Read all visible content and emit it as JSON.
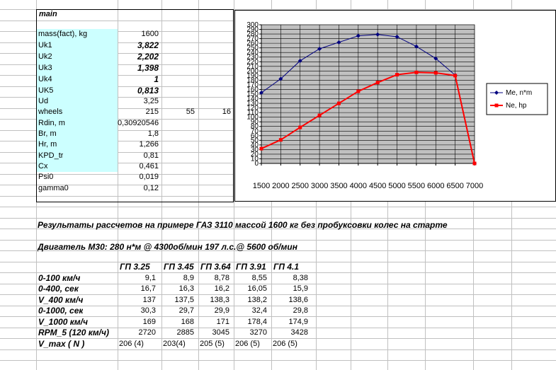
{
  "main_panel": {
    "title": "main",
    "params": [
      {
        "label": "mass(fact), kg",
        "value": "1600",
        "style": "normal"
      },
      {
        "label": "Uk1",
        "value": "3,822",
        "style": "bold"
      },
      {
        "label": "Uk2",
        "value": "2,202",
        "style": "bold"
      },
      {
        "label": "Uk3",
        "value": "1,398",
        "style": "bold"
      },
      {
        "label": "Uk4",
        "value": "1",
        "style": "bold"
      },
      {
        "label": "UK5",
        "value": "0,813",
        "style": "bold"
      },
      {
        "label": "Ud",
        "value": "3,25",
        "style": "normal"
      },
      {
        "label": "wheels",
        "value": "215",
        "style": "normal"
      },
      {
        "label": "Rdin, m",
        "value": "0,30920546",
        "style": "normal"
      },
      {
        "label": "Br, m",
        "value": "1,8",
        "style": "normal"
      },
      {
        "label": "Hr, m",
        "value": "1,266",
        "style": "normal"
      },
      {
        "label": "KPD_tr",
        "value": "0,81",
        "style": "normal"
      },
      {
        "label": "Cx",
        "value": "0,461",
        "style": "normal"
      },
      {
        "label": "Psi0",
        "value": "0,019",
        "style": "normal"
      },
      {
        "label": "gamma0",
        "value": "0,12",
        "style": "normal"
      }
    ],
    "wheels_extra": [
      "55",
      "16"
    ]
  },
  "chart_data": {
    "type": "line",
    "x": [
      1500,
      2000,
      2500,
      3000,
      3500,
      4000,
      4500,
      5000,
      5500,
      6000,
      6500,
      7000
    ],
    "x_ticks": [
      "1500",
      "2000",
      "2500",
      "3000",
      "3500",
      "4000",
      "4500",
      "5000",
      "5500",
      "6000",
      "6500",
      "7000"
    ],
    "ylim": [
      0,
      300
    ],
    "y_ticks": [
      "0",
      "10",
      "20",
      "30",
      "40",
      "50",
      "60",
      "70",
      "80",
      "90",
      "100",
      "110",
      "120",
      "130",
      "140",
      "150",
      "160",
      "170",
      "180",
      "190",
      "200",
      "210",
      "220",
      "230",
      "240",
      "250",
      "260",
      "270",
      "280",
      "290",
      "300"
    ],
    "grid": true,
    "legend_position": "right",
    "series": [
      {
        "name": "Me, n*m",
        "color": "#000080",
        "marker": "diamond",
        "values": [
          153,
          183,
          222,
          248,
          262,
          276,
          279,
          274,
          253,
          227,
          191,
          0
        ]
      },
      {
        "name": "Ne, hp",
        "color": "#ff0000",
        "marker": "square",
        "values": [
          32,
          51,
          78,
          104,
          130,
          156,
          175,
          192,
          197,
          196,
          190,
          0
        ]
      }
    ]
  },
  "results": {
    "title": "Результаты рассчетов на примере ГАЗ 3110 массой 1600 кг без пробуксовки колес на старте",
    "engine": "Двигатель М30: 280 н*м @ 4300об/мин  197 л.с.@ 5600 об/мин",
    "columns": [
      "ГП 3.25",
      "ГП 3.45",
      "ГП 3.64",
      "ГП 3.91",
      "ГП 4.1"
    ],
    "rows": [
      {
        "label": "0-100 км/ч",
        "values": [
          "9,1",
          "8,9",
          "8,78",
          "8,55",
          "8,38"
        ],
        "align": "right"
      },
      {
        "label": "0-400, сек",
        "values": [
          "16,7",
          "16,3",
          "16,2",
          "16,05",
          "15,9"
        ],
        "align": "right"
      },
      {
        "label": "V_400 км/ч",
        "values": [
          "137",
          "137,5",
          "138,3",
          "138,2",
          "138,6"
        ],
        "align": "right"
      },
      {
        "label": "0-1000, сек",
        "values": [
          "30,3",
          "29,7",
          "29,9",
          "32,4",
          "29,8"
        ],
        "align": "right"
      },
      {
        "label": "V_1000 км/ч",
        "values": [
          "169",
          "168",
          "171",
          "178,4",
          "174,9"
        ],
        "align": "right"
      },
      {
        "label": "RPM_5 (120 км/ч)",
        "values": [
          "2720",
          "2885",
          "3045",
          "3270",
          "3428"
        ],
        "align": "right"
      },
      {
        "label": "V_max ( N )",
        "values": [
          "206 (4)",
          "203(4)",
          "205 (5)",
          "206 (5)",
          "206 (5)"
        ],
        "align": "left"
      }
    ]
  }
}
